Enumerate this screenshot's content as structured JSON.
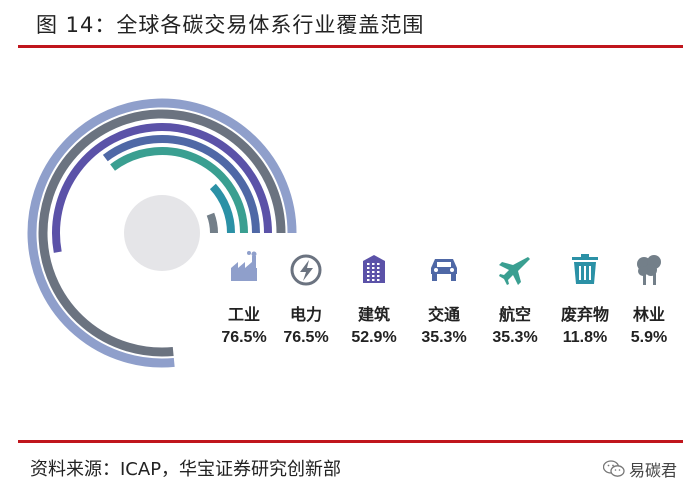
{
  "header": {
    "title": "图 14：全球各碳交易体系行业覆盖范围"
  },
  "footer": {
    "source": "资料来源：ICAP，华宝证券研究创新部",
    "brand": "易碳君"
  },
  "colors": {
    "accent_rule": "#c0161d",
    "rings": [
      "#8f9fcb",
      "#6b7380",
      "#5b52a8",
      "#4f68a6",
      "#3a9f91",
      "#2b91a6",
      "#737f89"
    ],
    "center_disc": "#e5e5e8"
  },
  "chart_data": {
    "type": "radial-bar",
    "categories": [
      "工业",
      "电力",
      "建筑",
      "交通",
      "航空",
      "废弃物",
      "林业"
    ],
    "values": [
      76.5,
      76.5,
      52.9,
      35.3,
      35.3,
      11.8,
      5.9
    ],
    "value_labels": [
      "76.5%",
      "76.5%",
      "52.9%",
      "35.3%",
      "35.3%",
      "11.8%",
      "5.9%"
    ],
    "icons": [
      "factory-icon",
      "power-icon",
      "building-icon",
      "car-icon",
      "airplane-icon",
      "trash-icon",
      "tree-icon"
    ],
    "max": 100
  }
}
